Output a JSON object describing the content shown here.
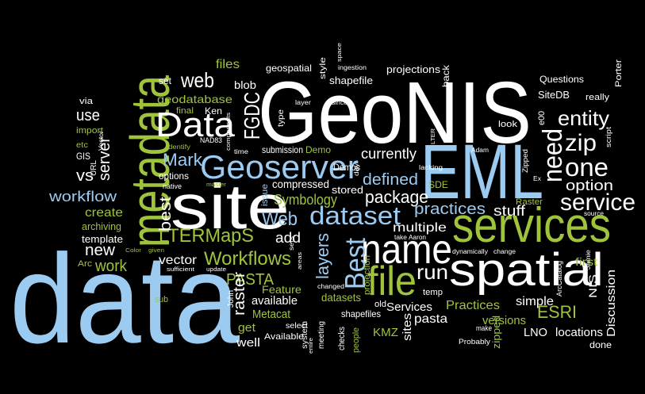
{
  "words": [
    {
      "text": "data",
      "color": "#9ccbf2"
    },
    {
      "text": "GeoNIS",
      "color": "#ffffff"
    },
    {
      "text": "EML",
      "color": "#9ccbf2"
    },
    {
      "text": "site",
      "color": "#ffffff"
    },
    {
      "text": "metadata",
      "color": "#9fc43c"
    },
    {
      "text": "services",
      "color": "#9fc43c"
    },
    {
      "text": "spatial",
      "color": "#ffffff"
    },
    {
      "text": "name",
      "color": "#ffffff"
    },
    {
      "text": "file",
      "color": "#9fc43c"
    },
    {
      "text": "Geoserver",
      "color": "#9ccbf2"
    },
    {
      "text": "Data",
      "color": "#ffffff"
    },
    {
      "text": "dataset",
      "color": "#9ccbf2"
    },
    {
      "text": "one",
      "color": "#ffffff"
    },
    {
      "text": "need",
      "color": "#ffffff"
    },
    {
      "text": "zip",
      "color": "#ffffff"
    },
    {
      "text": "entity",
      "color": "#ffffff"
    },
    {
      "text": "service",
      "color": "#ffffff"
    },
    {
      "text": "Best",
      "color": "#9ccbf2"
    },
    {
      "text": "web",
      "color": "#ffffff"
    },
    {
      "text": "FGDC",
      "color": "#ffffff"
    },
    {
      "text": "LTERMapS",
      "color": "#9fc43c"
    },
    {
      "text": "Workflows",
      "color": "#9fc43c"
    },
    {
      "text": "Web",
      "color": "#9ccbf2"
    },
    {
      "text": "Mark",
      "color": "#9ccbf2"
    },
    {
      "text": "PASTA",
      "color": "#9fc43c"
    },
    {
      "text": "run",
      "color": "#ffffff"
    },
    {
      "text": "currently",
      "color": "#ffffff"
    },
    {
      "text": "multiple",
      "color": "#ffffff"
    },
    {
      "text": "package",
      "color": "#ffffff"
    },
    {
      "text": "defined",
      "color": "#9ccbf2"
    },
    {
      "text": "Symbology",
      "color": "#9fc43c"
    },
    {
      "text": "compressed",
      "color": "#ffffff"
    },
    {
      "text": "stored",
      "color": "#ffffff"
    },
    {
      "text": "practices",
      "color": "#9ccbf2"
    },
    {
      "text": "stuff",
      "color": "#ffffff"
    },
    {
      "text": "option",
      "color": "#ffffff"
    },
    {
      "text": "workflow",
      "color": "#9ccbf2"
    },
    {
      "text": "vs",
      "color": "#ffffff"
    },
    {
      "text": "create",
      "color": "#9fc43c"
    },
    {
      "text": "new",
      "color": "#ffffff"
    },
    {
      "text": "work",
      "color": "#9fc43c"
    },
    {
      "text": "use",
      "color": "#ffffff"
    },
    {
      "text": "server",
      "color": "#ffffff"
    },
    {
      "text": "archiving",
      "color": "#9fc43c"
    },
    {
      "text": "template",
      "color": "#ffffff"
    },
    {
      "text": "best",
      "color": "#ffffff"
    },
    {
      "text": "vector",
      "color": "#ffffff"
    },
    {
      "text": "raster",
      "color": "#ffffff"
    },
    {
      "text": "available",
      "color": "#ffffff"
    },
    {
      "text": "Metacat",
      "color": "#9fc43c"
    },
    {
      "text": "get",
      "color": "#9fc43c"
    },
    {
      "text": "well",
      "color": "#ffffff"
    },
    {
      "text": "Available",
      "color": "#ffffff"
    },
    {
      "text": "Feature",
      "color": "#9fc43c"
    },
    {
      "text": "layers",
      "color": "#9ccbf2"
    },
    {
      "text": "add",
      "color": "#ffffff"
    },
    {
      "text": "datasets",
      "color": "#9fc43c"
    },
    {
      "text": "shapefiles",
      "color": "#ffffff"
    },
    {
      "text": "Services",
      "color": "#ffffff"
    },
    {
      "text": "pasta",
      "color": "#ffffff"
    },
    {
      "text": "Practices",
      "color": "#9fc43c"
    },
    {
      "text": "simple",
      "color": "#ffffff"
    },
    {
      "text": "ESRI",
      "color": "#9fc43c"
    },
    {
      "text": "versions",
      "color": "#9fc43c"
    },
    {
      "text": "LNO",
      "color": "#ffffff"
    },
    {
      "text": "locations",
      "color": "#ffffff"
    },
    {
      "text": "done",
      "color": "#ffffff"
    },
    {
      "text": "KMZ",
      "color": "#9fc43c"
    },
    {
      "text": "sites",
      "color": "#ffffff"
    },
    {
      "text": "Discussion",
      "color": "#ffffff"
    },
    {
      "text": "NIS",
      "color": "#ffffff"
    },
    {
      "text": "first",
      "color": "#9fc43c"
    },
    {
      "text": "Raster",
      "color": "#9fc43c"
    },
    {
      "text": "SDE",
      "color": "#9fc43c"
    },
    {
      "text": "blob",
      "color": "#ffffff"
    },
    {
      "text": "geodatabase",
      "color": "#9fc43c"
    },
    {
      "text": "files",
      "color": "#9fc43c"
    },
    {
      "text": "geospatial",
      "color": "#ffffff"
    },
    {
      "text": "style",
      "color": "#ffffff"
    },
    {
      "text": "projections",
      "color": "#ffffff"
    },
    {
      "text": "shapefile",
      "color": "#ffffff"
    },
    {
      "text": "back",
      "color": "#ffffff"
    },
    {
      "text": "Questions",
      "color": "#ffffff"
    },
    {
      "text": "Porter",
      "color": "#ffffff"
    },
    {
      "text": "SiteDB",
      "color": "#ffffff"
    },
    {
      "text": "really",
      "color": "#ffffff"
    },
    {
      "text": "look",
      "color": "#ffffff"
    },
    {
      "text": "e00",
      "color": "#ffffff"
    },
    {
      "text": "set",
      "color": "#ffffff"
    },
    {
      "text": "Ken",
      "color": "#ffffff"
    },
    {
      "text": "final",
      "color": "#9fc43c"
    },
    {
      "text": "Demo",
      "color": "#9fc43c"
    },
    {
      "text": "submission",
      "color": "#ffffff"
    },
    {
      "text": "Demos",
      "color": "#ffffff"
    },
    {
      "text": "issue",
      "color": "#9ccbf2"
    },
    {
      "text": "options",
      "color": "#ffffff"
    },
    {
      "text": "native",
      "color": "#ffffff"
    },
    {
      "text": "GIS",
      "color": "#ffffff"
    },
    {
      "text": "etc",
      "color": "#9fc43c"
    },
    {
      "text": "import",
      "color": "#9fc43c"
    },
    {
      "text": "via",
      "color": "#ffffff"
    },
    {
      "text": "URL",
      "color": "#ffffff"
    },
    {
      "text": "Vector",
      "color": "#ffffff"
    },
    {
      "text": "Arc",
      "color": "#9fc43c"
    },
    {
      "text": "sub",
      "color": "#9fc43c"
    },
    {
      "text": "John",
      "color": "#ffffff"
    },
    {
      "text": "select",
      "color": "#ffffff"
    },
    {
      "text": "system",
      "color": "#ffffff"
    },
    {
      "text": "meeting",
      "color": "#ffffff"
    },
    {
      "text": "checks",
      "color": "#ffffff"
    },
    {
      "text": "people",
      "color": "#9fc43c"
    },
    {
      "text": "projection",
      "color": "#9fc43c"
    },
    {
      "text": "old",
      "color": "#ffffff"
    },
    {
      "text": "temp",
      "color": "#ffffff"
    },
    {
      "text": "zipped",
      "color": "#9fc43c"
    },
    {
      "text": "make",
      "color": "#ffffff"
    },
    {
      "text": "Probably",
      "color": "#ffffff"
    },
    {
      "text": "ArcCatalog",
      "color": "#ffffff"
    },
    {
      "text": "Jamie",
      "color": "#ffffff"
    },
    {
      "text": "dynamically",
      "color": "#ffffff"
    },
    {
      "text": "change",
      "color": "#ffffff"
    },
    {
      "text": "take",
      "color": "#ffffff"
    },
    {
      "text": "Aaron",
      "color": "#ffffff"
    },
    {
      "text": "source",
      "color": "#ffffff"
    },
    {
      "text": "script",
      "color": "#ffffff"
    },
    {
      "text": "Ex",
      "color": "#ffffff"
    },
    {
      "text": "Zipped",
      "color": "#ffffff"
    },
    {
      "text": "Adam",
      "color": "#ffffff"
    },
    {
      "text": "LTER",
      "color": "#ffffff"
    },
    {
      "text": "lacking",
      "color": "#ffffff"
    },
    {
      "text": "day",
      "color": "#ffffff"
    },
    {
      "text": "sets",
      "color": "#ffffff"
    },
    {
      "text": "areas",
      "color": "#ffffff"
    },
    {
      "text": "changed",
      "color": "#ffffff"
    },
    {
      "text": "since",
      "color": "#ffffff"
    },
    {
      "text": "ingestion",
      "color": "#ffffff"
    },
    {
      "text": "space",
      "color": "#ffffff"
    },
    {
      "text": "layer",
      "color": "#ffffff"
    },
    {
      "text": "type",
      "color": "#ffffff"
    },
    {
      "text": "time",
      "color": "#ffffff"
    },
    {
      "text": "NAD83",
      "color": "#ffffff"
    },
    {
      "text": "components",
      "color": "#ffffff"
    },
    {
      "text": "identify",
      "color": "#9fc43c"
    },
    {
      "text": "master",
      "color": "#9fc43c"
    },
    {
      "text": "given",
      "color": "#9fc43c"
    },
    {
      "text": "Color",
      "color": "#9fc43c"
    },
    {
      "text": "sufficient",
      "color": "#ffffff"
    },
    {
      "text": "update",
      "color": "#ffffff"
    },
    {
      "text": "entire",
      "color": "#ffffff"
    }
  ]
}
